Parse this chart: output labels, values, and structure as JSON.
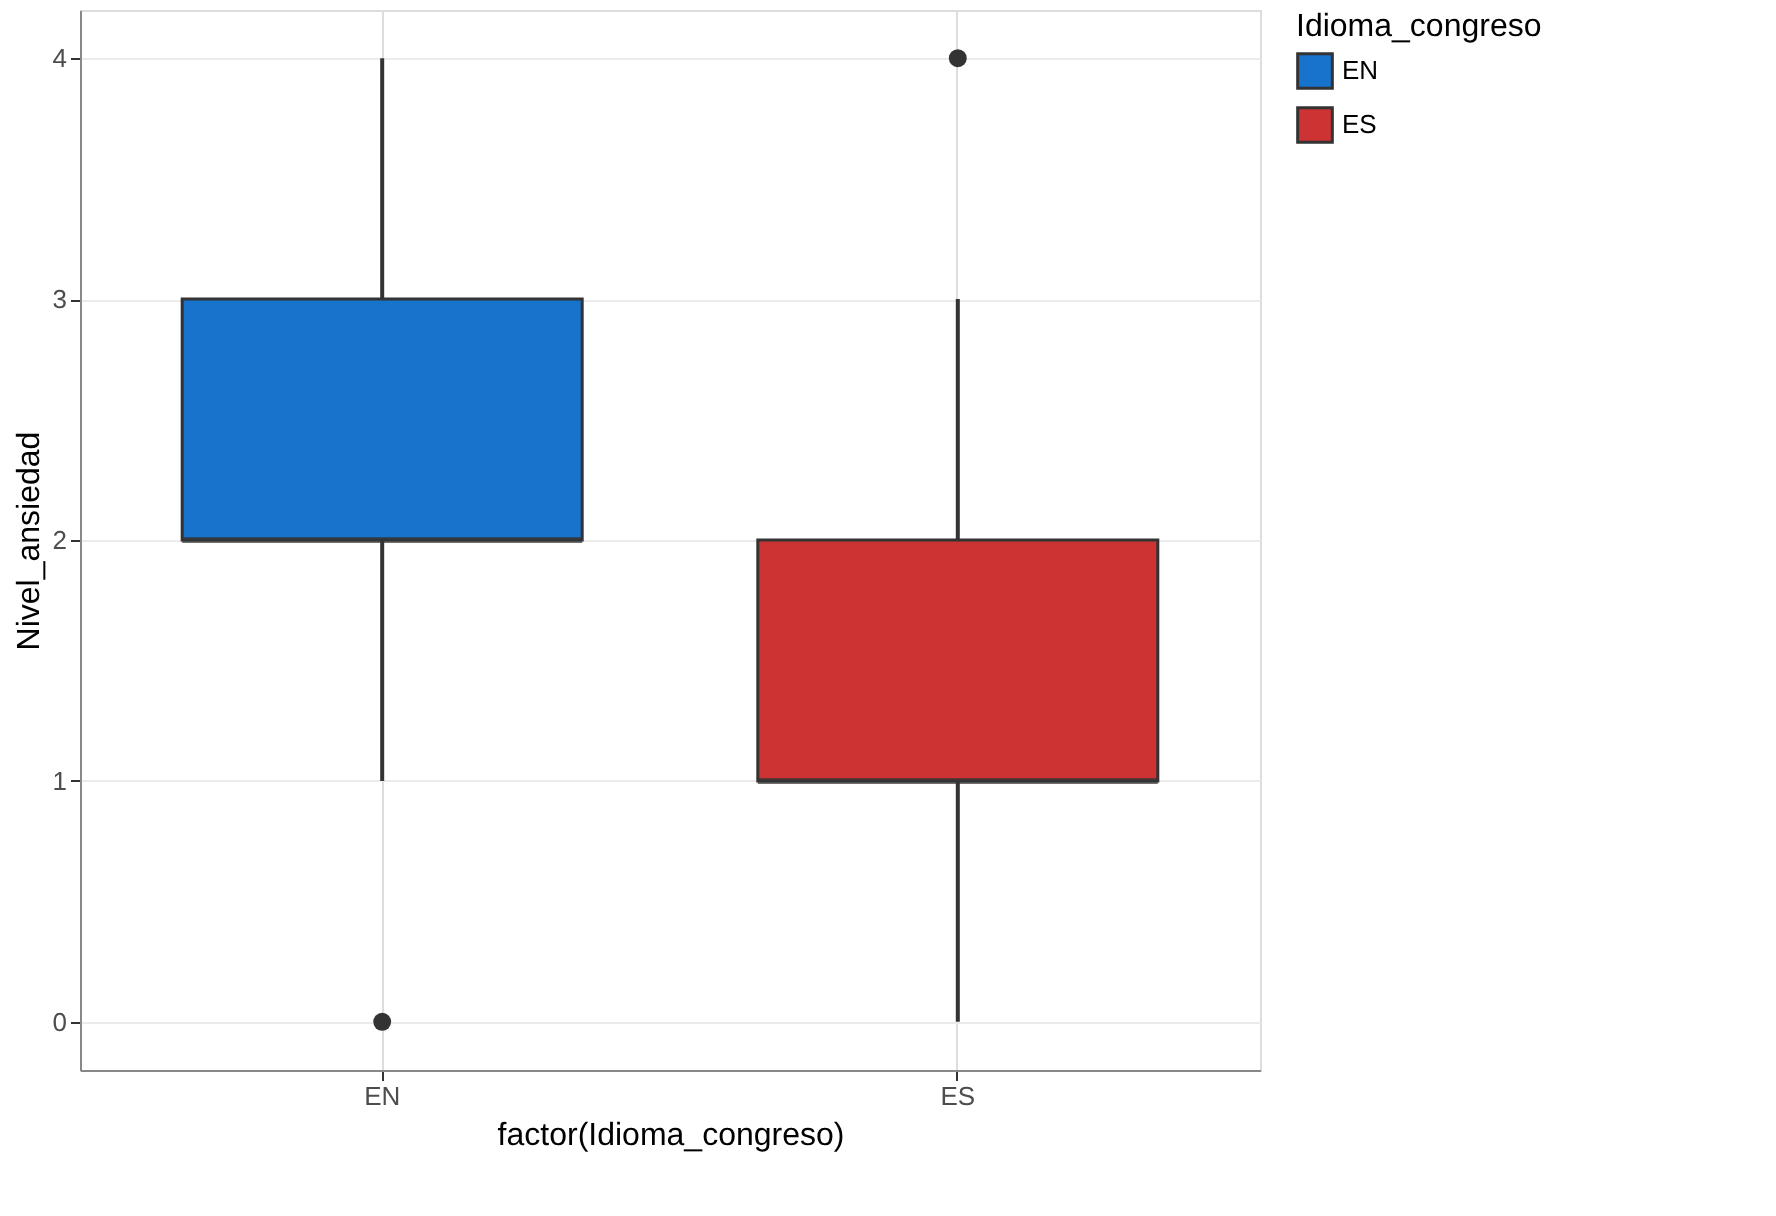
{
  "chart_data": {
    "type": "box",
    "xlabel": "factor(Idioma_congreso)",
    "ylabel": "Nivel_ansiedad",
    "legend_title": "Idioma_congreso",
    "categories": [
      "EN",
      "ES"
    ],
    "series": [
      {
        "name": "EN",
        "color": "#1873cd",
        "boxes": [
          {
            "low": 1,
            "q1": 2,
            "median": 2,
            "q3": 3,
            "high": 4,
            "outliers": [
              0
            ]
          },
          null
        ]
      },
      {
        "name": "ES",
        "color": "#cd3333",
        "boxes": [
          null,
          {
            "low": 0,
            "q1": 1,
            "median": 1,
            "q3": 2,
            "high": 3,
            "outliers": [
              4
            ]
          }
        ]
      }
    ],
    "ylim": [
      -0.2,
      4.2
    ],
    "yticks": [
      0,
      1,
      2,
      3,
      4
    ],
    "grid": true,
    "legend": "right"
  }
}
